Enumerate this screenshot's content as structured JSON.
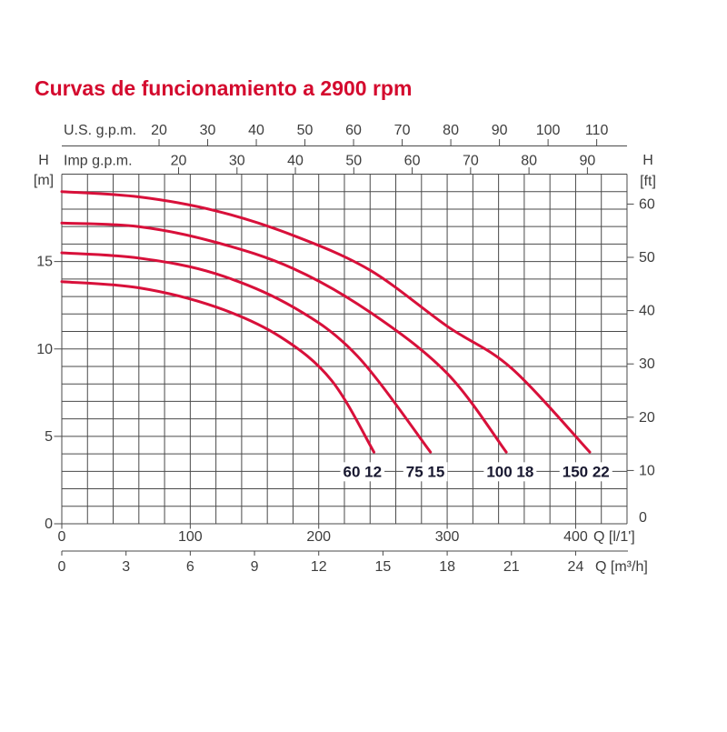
{
  "title": "Curvas de funcionamiento a 2900 rpm",
  "colors": {
    "title": "#d40a2e",
    "curve": "#d8103a",
    "grid": "#4a4a4a",
    "text": "#3d3d3d",
    "curve_label": "#181830",
    "background": "#ffffff"
  },
  "chart_data": {
    "type": "line",
    "title": "Curvas de funcionamiento a 2900 rpm",
    "x_axes": [
      {
        "id": "us_gpm",
        "label": "U.S. g.p.m.",
        "unit_to_lmin": 3.7854,
        "ticks": [
          20,
          30,
          40,
          50,
          60,
          70,
          80,
          90,
          100,
          110
        ],
        "position": "top-outer"
      },
      {
        "id": "imp_gpm",
        "label": "Imp g.p.m.",
        "unit_to_lmin": 4.5461,
        "ticks": [
          20,
          30,
          40,
          50,
          60,
          70,
          80,
          90
        ],
        "position": "top-inner"
      },
      {
        "id": "l_min",
        "label": "Q [l/1']",
        "unit_to_lmin": 1,
        "ticks": [
          0,
          100,
          200,
          300,
          400
        ],
        "position": "bottom-inner",
        "range": [
          0,
          440
        ]
      },
      {
        "id": "m3h",
        "label": "Q [m³/h]",
        "unit_to_lmin": 16.667,
        "ticks": [
          0,
          3,
          6,
          9,
          12,
          15,
          18,
          21,
          24
        ],
        "position": "bottom-outer"
      }
    ],
    "y_axes": [
      {
        "id": "h_m",
        "label": "H",
        "unit": "[m]",
        "unit_to_m": 1,
        "ticks": [
          0,
          5,
          10,
          15
        ],
        "range": [
          0,
          20
        ],
        "position": "left"
      },
      {
        "id": "h_ft",
        "label": "H",
        "unit": "[ft]",
        "unit_to_m": 0.3048,
        "ticks": [
          0,
          10,
          20,
          30,
          40,
          50,
          60
        ],
        "position": "right"
      }
    ],
    "grid": {
      "x_step_lmin": 20,
      "y_step_m": 1,
      "x_max_lmin": 440,
      "y_max_m": 20
    },
    "series": [
      {
        "name": "60 12",
        "points": [
          [
            0,
            13.85
          ],
          [
            60,
            13.5
          ],
          [
            120,
            12.4
          ],
          [
            170,
            10.7
          ],
          [
            210,
            8.2
          ],
          [
            243,
            4.1
          ]
        ],
        "label_q": 234,
        "label_h": 3.0
      },
      {
        "name": "75 15",
        "points": [
          [
            0,
            15.5
          ],
          [
            60,
            15.2
          ],
          [
            120,
            14.3
          ],
          [
            180,
            12.4
          ],
          [
            230,
            9.6
          ],
          [
            287,
            4.1
          ]
        ],
        "label_q": 283,
        "label_h": 3.0
      },
      {
        "name": "100 18",
        "points": [
          [
            0,
            17.2
          ],
          [
            60,
            17.0
          ],
          [
            120,
            16.1
          ],
          [
            180,
            14.6
          ],
          [
            240,
            12.1
          ],
          [
            300,
            8.6
          ],
          [
            346,
            4.1
          ]
        ],
        "label_q": 349,
        "label_h": 3.0
      },
      {
        "name": "150 22",
        "points": [
          [
            0,
            19.0
          ],
          [
            60,
            18.7
          ],
          [
            120,
            17.9
          ],
          [
            180,
            16.5
          ],
          [
            240,
            14.5
          ],
          [
            300,
            11.3
          ],
          [
            350,
            8.9
          ],
          [
            411,
            4.1
          ]
        ],
        "label_q": 408,
        "label_h": 3.0
      }
    ]
  }
}
